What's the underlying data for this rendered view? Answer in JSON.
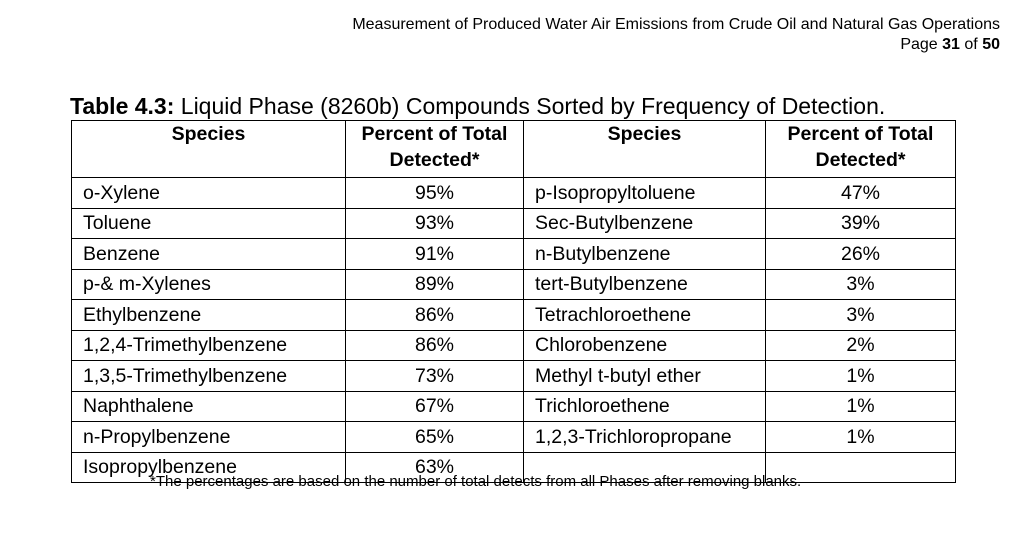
{
  "header": {
    "doc_title": "Measurement of Produced Water Air Emissions from Crude Oil and Natural Gas Operations",
    "page_prefix": "Page",
    "page_current": "31",
    "page_of": "of",
    "page_total": "50"
  },
  "caption": {
    "label": "Table 4.3:",
    "title": "Liquid Phase (8260b) Compounds Sorted by Frequency of Detection."
  },
  "table": {
    "headers": [
      "Species",
      "Percent of Total Detected*",
      "Species",
      "Percent of Total Detected*"
    ],
    "rows": [
      [
        "o-Xylene",
        "95%",
        "p-Isopropyltoluene",
        "47%"
      ],
      [
        "Toluene",
        "93%",
        "Sec-Butylbenzene",
        "39%"
      ],
      [
        "Benzene",
        "91%",
        "n-Butylbenzene",
        "26%"
      ],
      [
        "p-& m-Xylenes",
        "89%",
        "tert-Butylbenzene",
        "3%"
      ],
      [
        "Ethylbenzene",
        "86%",
        "Tetrachloroethene",
        "3%"
      ],
      [
        "1,2,4-Trimethylbenzene",
        "86%",
        "Chlorobenzene",
        "2%"
      ],
      [
        "1,3,5-Trimethylbenzene",
        "73%",
        "Methyl t-butyl ether",
        "1%"
      ],
      [
        "Naphthalene",
        "67%",
        "Trichloroethene",
        "1%"
      ],
      [
        "n-Propylbenzene",
        "65%",
        "1,2,3-Trichloropropane",
        "1%"
      ],
      [
        "Isopropylbenzene",
        "63%",
        "",
        ""
      ]
    ]
  },
  "footnote": "*The percentages are based on the number of total detects from all Phases after removing blanks."
}
